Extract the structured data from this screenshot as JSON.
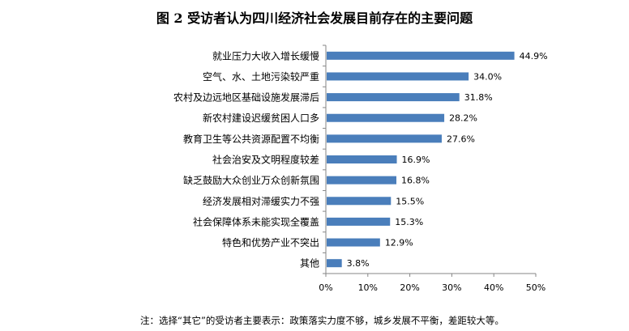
{
  "chart_data": {
    "type": "bar",
    "orientation": "horizontal",
    "title": "图 2  受访者认为四川经济社会发展目前存在的主要问题",
    "categories": [
      "就业压力大收入增长缓慢",
      "空气、水、土地污染较严重",
      "农村及边远地区基础设施发展滞后",
      "新农村建设迟缓贫困人口多",
      "教育卫生等公共资源配置不均衡",
      "社会治安及文明程度较差",
      "缺乏鼓励大众创业万众创新氛围",
      "经济发展相对滞缓实力不强",
      "社会保障体系未能实现全覆盖",
      "特色和优势产业不突出",
      "其他"
    ],
    "values": [
      44.9,
      34.0,
      31.8,
      28.2,
      27.6,
      16.9,
      16.8,
      15.5,
      15.3,
      12.9,
      3.8
    ],
    "value_labels": [
      "44.9%",
      "34.0%",
      "31.8%",
      "28.2%",
      "27.6%",
      "16.9%",
      "16.8%",
      "15.5%",
      "15.3%",
      "12.9%",
      "3.8%"
    ],
    "xlim": [
      0,
      50
    ],
    "x_ticks": [
      "0%",
      "10%",
      "20%",
      "30%",
      "40%",
      "50%"
    ],
    "grid": false,
    "bar_color": "#4a7ebb",
    "note": "注：选择“其它”的受访者主要表示：政策落实力度不够，城乡发展不平衡，差距较大等。"
  }
}
